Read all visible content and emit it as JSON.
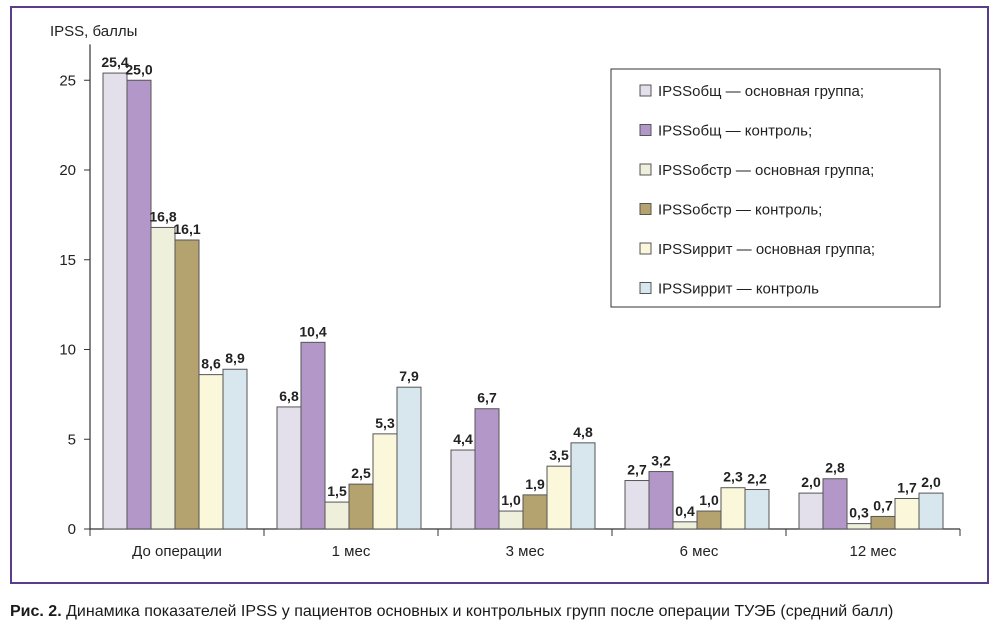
{
  "colors": {
    "frame": "#5a3d8a",
    "series": [
      "#e3e0eb",
      "#b397c9",
      "#eef0dc",
      "#b5a36f",
      "#fbf7da",
      "#d8e7ee"
    ]
  },
  "caption": {
    "label": "Рис. 2.",
    "text": "Динамика показателей IPSS у пациентов основных и контрольных групп после операции ТУЭБ (средний балл)"
  },
  "chart_data": {
    "type": "bar",
    "ylabel": "IPSS, баллы",
    "xlabel": "",
    "ylim": [
      0,
      27
    ],
    "yticks": [
      0,
      5,
      10,
      15,
      20,
      25
    ],
    "categories": [
      "До операции",
      "1 мес",
      "3 мес",
      "6 мес",
      "12 мес"
    ],
    "series": [
      {
        "name": "IPSSобщ — основная группа;",
        "values": [
          25.4,
          6.8,
          4.4,
          2.7,
          2.0
        ],
        "labels": [
          "25,4",
          "6,8",
          "4,4",
          "2,7",
          "2,0"
        ]
      },
      {
        "name": "IPSSобщ — контроль;",
        "values": [
          25.0,
          10.4,
          6.7,
          3.2,
          2.8
        ],
        "labels": [
          "25,0",
          "10,4",
          "6,7",
          "3,2",
          "2,8"
        ]
      },
      {
        "name": "IPSSобстр — основная группа;",
        "values": [
          16.8,
          1.5,
          1.0,
          0.4,
          0.3
        ],
        "labels": [
          "16,8",
          "1,5",
          "1,0",
          "0,4",
          "0,3"
        ]
      },
      {
        "name": "IPSSобстр — контроль;",
        "values": [
          16.1,
          2.5,
          1.9,
          1.0,
          0.7
        ],
        "labels": [
          "16,1",
          "2,5",
          "1,9",
          "1,0",
          "0,7"
        ]
      },
      {
        "name": "IPSSиррит — основная группа;",
        "values": [
          8.6,
          5.3,
          3.5,
          2.3,
          1.7
        ],
        "labels": [
          "8,6",
          "5,3",
          "3,5",
          "2,3",
          "1,7"
        ]
      },
      {
        "name": "IPSSиррит — контроль",
        "values": [
          8.9,
          7.9,
          4.8,
          2.2,
          2.0
        ],
        "labels": [
          "8,9",
          "7,9",
          "4,8",
          "2,2",
          "2,0"
        ]
      }
    ],
    "legend": "top-right",
    "grid": false
  }
}
